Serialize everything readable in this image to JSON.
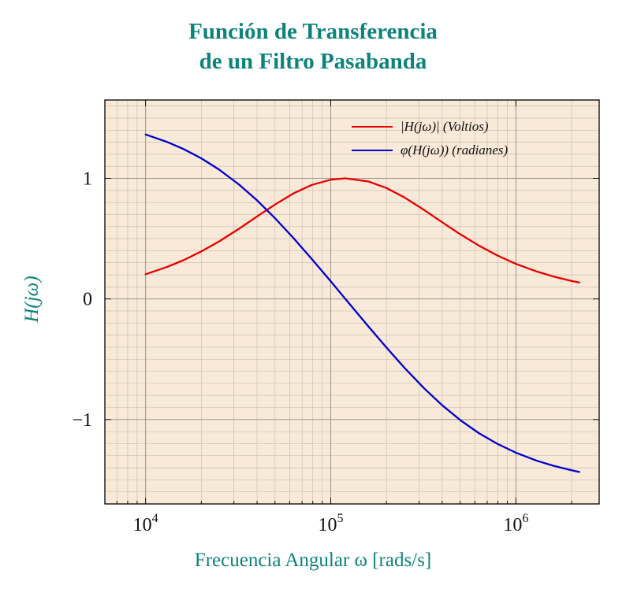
{
  "title": {
    "line1": "Función de Transferencia",
    "line2": "de un Filtro Pasabanda"
  },
  "axes": {
    "x_label": "Frecuencia Angular ω [rads/s]",
    "y_label": "H(jω)",
    "x_ticks": [
      {
        "base": "10",
        "exp": "4",
        "value": 10000
      },
      {
        "base": "10",
        "exp": "5",
        "value": 100000
      },
      {
        "base": "10",
        "exp": "6",
        "value": 1000000
      }
    ],
    "y_ticks": [
      {
        "label": "1",
        "value": 1
      },
      {
        "label": "0",
        "value": 0
      },
      {
        "label": "−1",
        "value": -1
      }
    ],
    "xlim_log": [
      3.78,
      6.45
    ],
    "ylim": [
      -1.7,
      1.65
    ],
    "x_scale": "log",
    "grid": "both"
  },
  "legend": [
    {
      "label": "|H(jω)| (Voltios)",
      "series_index": 0
    },
    {
      "label": "φ(H(jω)) (radianes)",
      "series_index": 1
    }
  ],
  "colors": {
    "teal": "#0d837b",
    "plot_background": "#f8e9d8",
    "grid_minor": "#c3bcb0",
    "grid_major": "#8f8a80",
    "frame": "#000000",
    "magnitude": "#e60000",
    "phase": "#0000cd"
  },
  "chart_data": {
    "type": "line",
    "title": "Función de Transferencia de un Filtro Pasabanda",
    "xlabel": "Frecuencia Angular ω [rads/s]",
    "ylabel": "H(jω)",
    "x_scale": "log",
    "xlim": [
      6000,
      2800000
    ],
    "ylim": [
      -1.7,
      1.65
    ],
    "legend_position": "top-right-inside",
    "x": [
      10000,
      13000,
      16000,
      20000,
      25000,
      32000,
      40000,
      50000,
      63000,
      79000,
      100000,
      120000,
      160000,
      200000,
      250000,
      320000,
      400000,
      500000,
      630000,
      790000,
      1000000,
      1300000,
      1600000,
      2000000,
      2200000
    ],
    "series": [
      {
        "name": "|H(jω)| (Voltios)",
        "color": "#e60000",
        "values": [
          0.205,
          0.264,
          0.321,
          0.394,
          0.478,
          0.583,
          0.684,
          0.783,
          0.876,
          0.946,
          0.989,
          1.0,
          0.974,
          0.92,
          0.842,
          0.737,
          0.636,
          0.537,
          0.443,
          0.362,
          0.291,
          0.227,
          0.185,
          0.149,
          0.136
        ]
      },
      {
        "name": "φ(H(jω)) (radianes)",
        "color": "#0000cd",
        "values": [
          1.364,
          1.303,
          1.244,
          1.166,
          1.072,
          0.948,
          0.818,
          0.67,
          0.504,
          0.331,
          0.146,
          0.0,
          -0.229,
          -0.403,
          -0.57,
          -0.742,
          -0.882,
          -1.004,
          -1.112,
          -1.2,
          -1.275,
          -1.342,
          -1.384,
          -1.421,
          -1.435
        ]
      }
    ]
  }
}
